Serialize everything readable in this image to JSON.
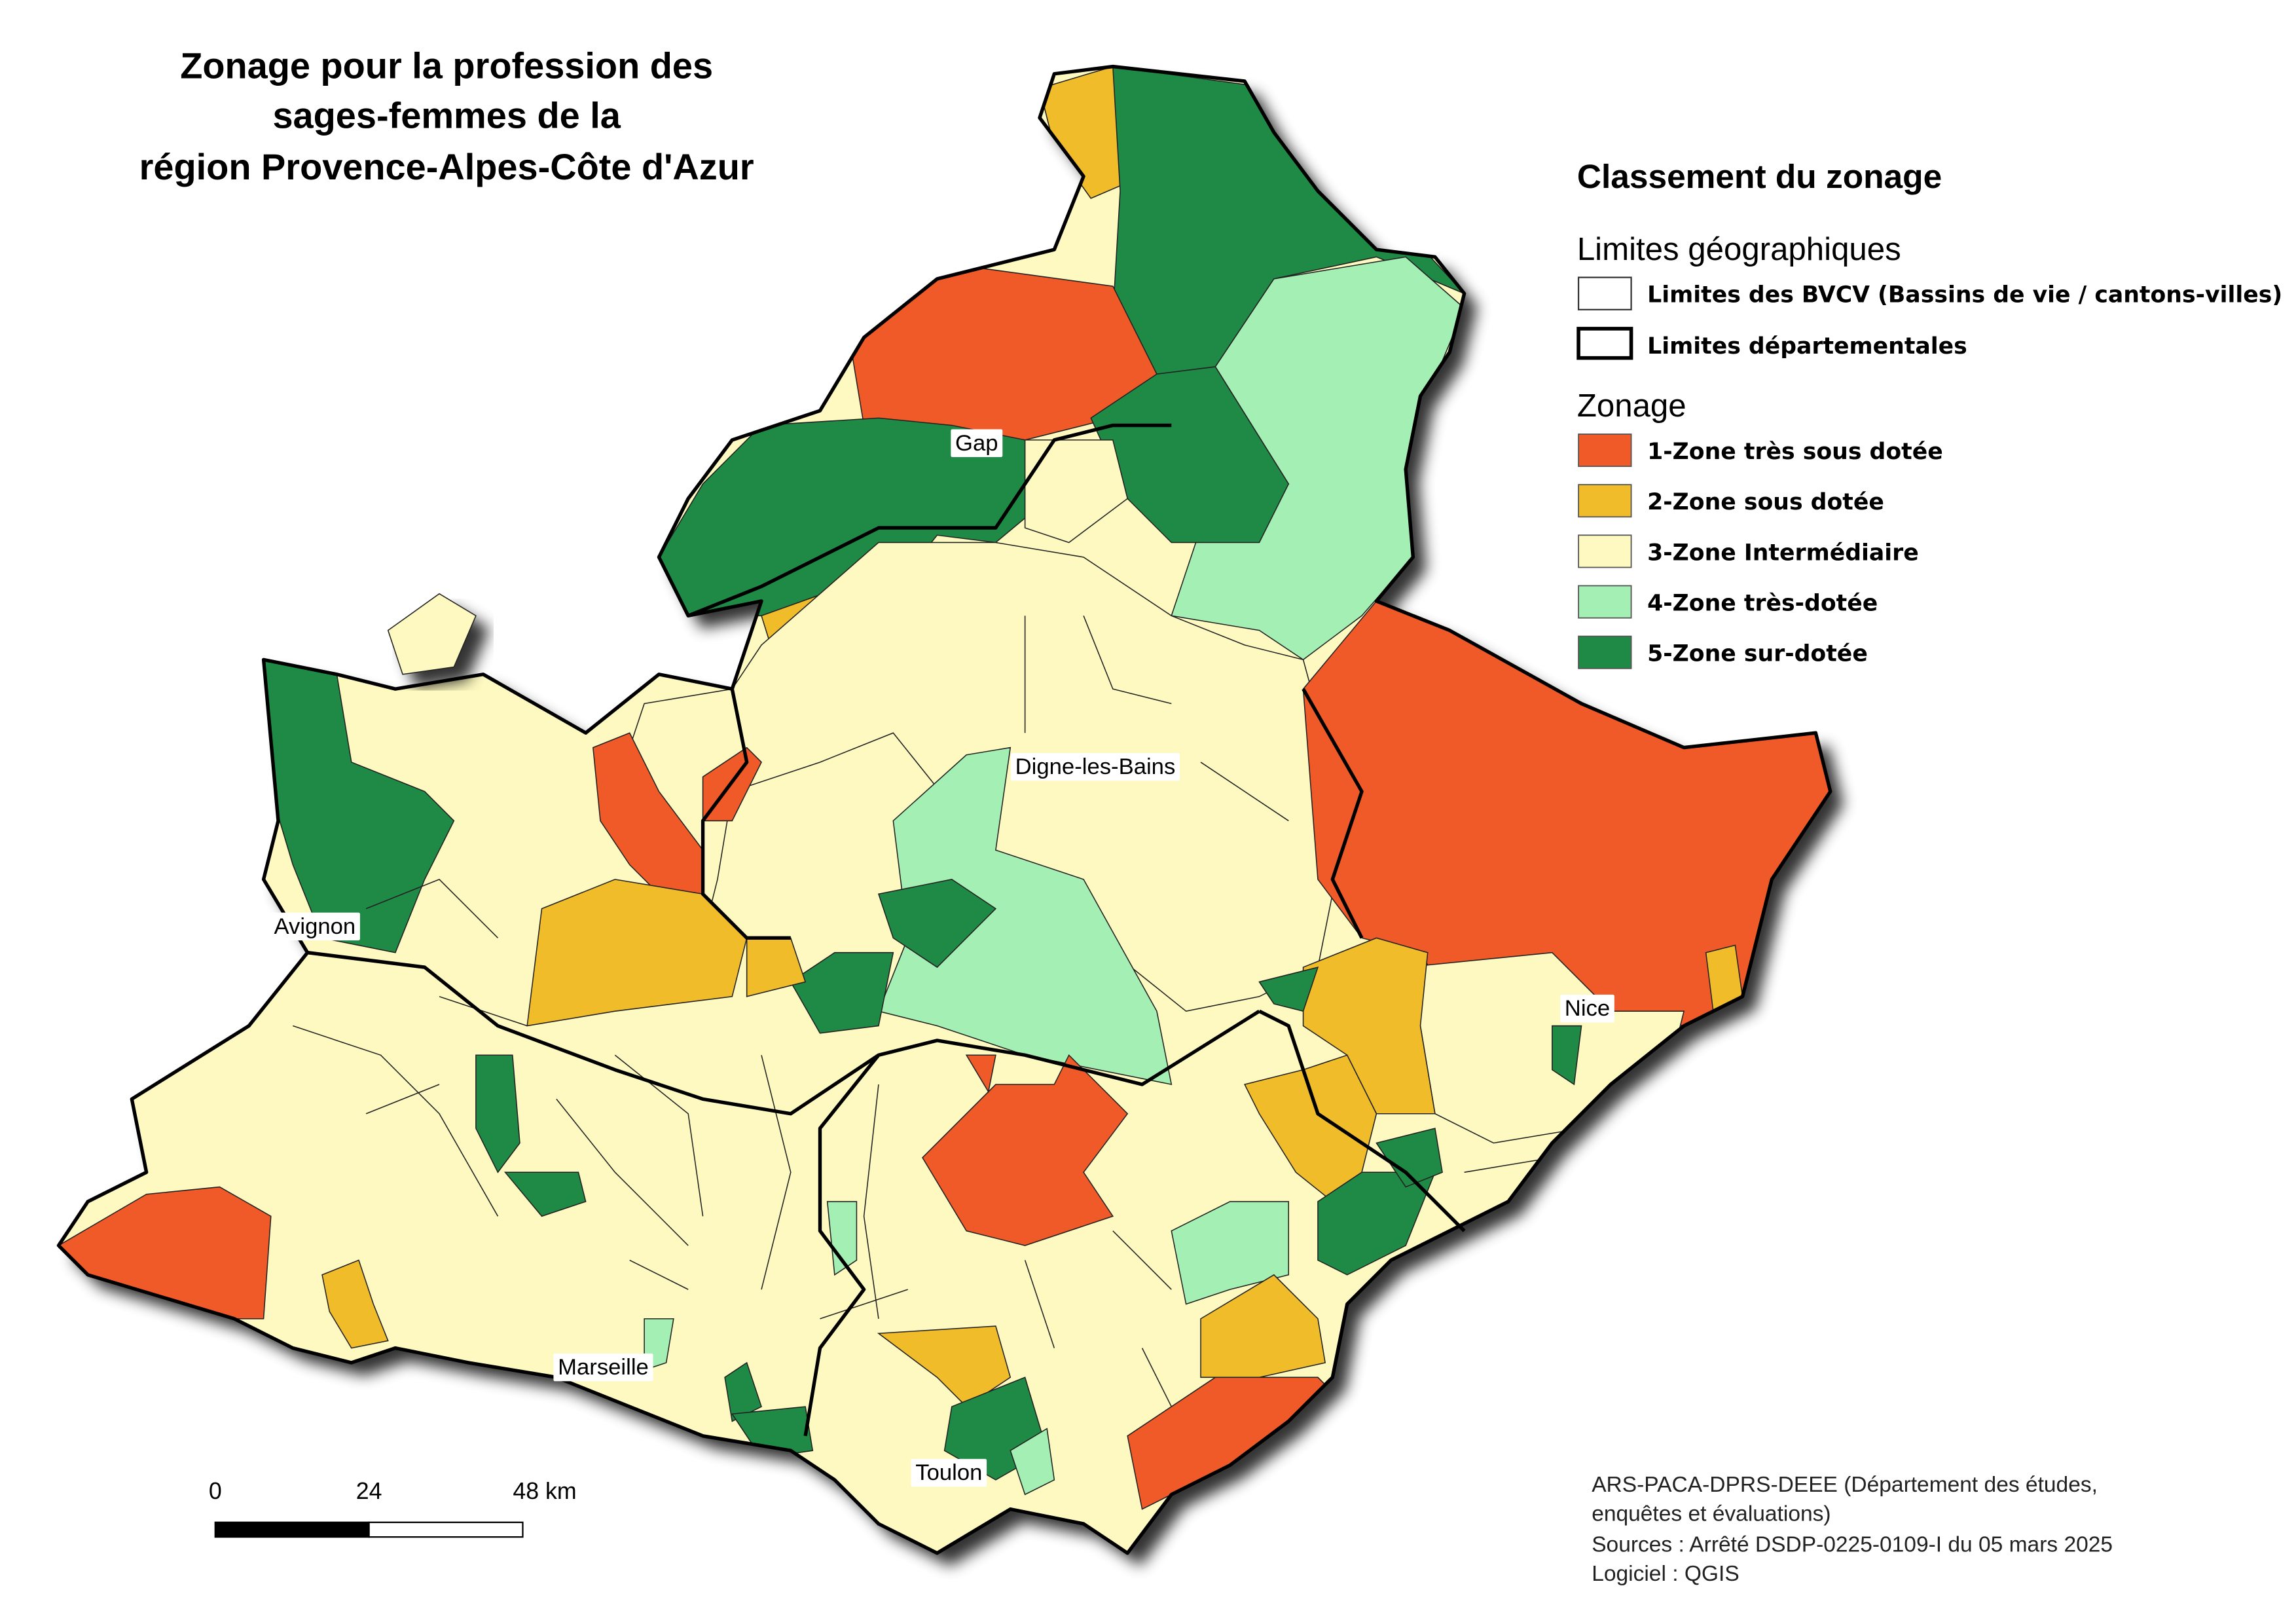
{
  "title": [
    "Zonage pour la profession des",
    "sages-femmes de la",
    "région Provence-Alpes-Côte d'Azur"
  ],
  "legend": {
    "heading": "Classement du zonage",
    "geo_heading": "Limites géographiques",
    "geo_items": [
      "Limites des BVCV (Bassins de vie / cantons-villes)",
      "Limites départementales"
    ],
    "zonage_heading": "Zonage",
    "zonage_items": [
      {
        "label": "1-Zone très sous dotée",
        "color": "#f05a28"
      },
      {
        "label": "2-Zone sous dotée",
        "color": "#f0bc2a"
      },
      {
        "label": "3-Zone Intermédiaire",
        "color": "#fdf9c0"
      },
      {
        "label": "4-Zone très-dotée",
        "color": "#a4f0b4"
      },
      {
        "label": "5-Zone sur-dotée",
        "color": "#1e8a46"
      }
    ]
  },
  "cities": [
    "Gap",
    "Digne-les-Bains",
    "Avignon",
    "Nice",
    "Marseille",
    "Toulon"
  ],
  "scale_labels": [
    "0",
    "24",
    "48 km"
  ],
  "source": [
    "ARS-PACA-DPRS-DEEE (Département des études,",
    "enquêtes et évaluations)",
    "Sources : Arrêté DSDP-0225-0109-I du 05 mars 2025",
    "Logiciel : QGIS"
  ]
}
